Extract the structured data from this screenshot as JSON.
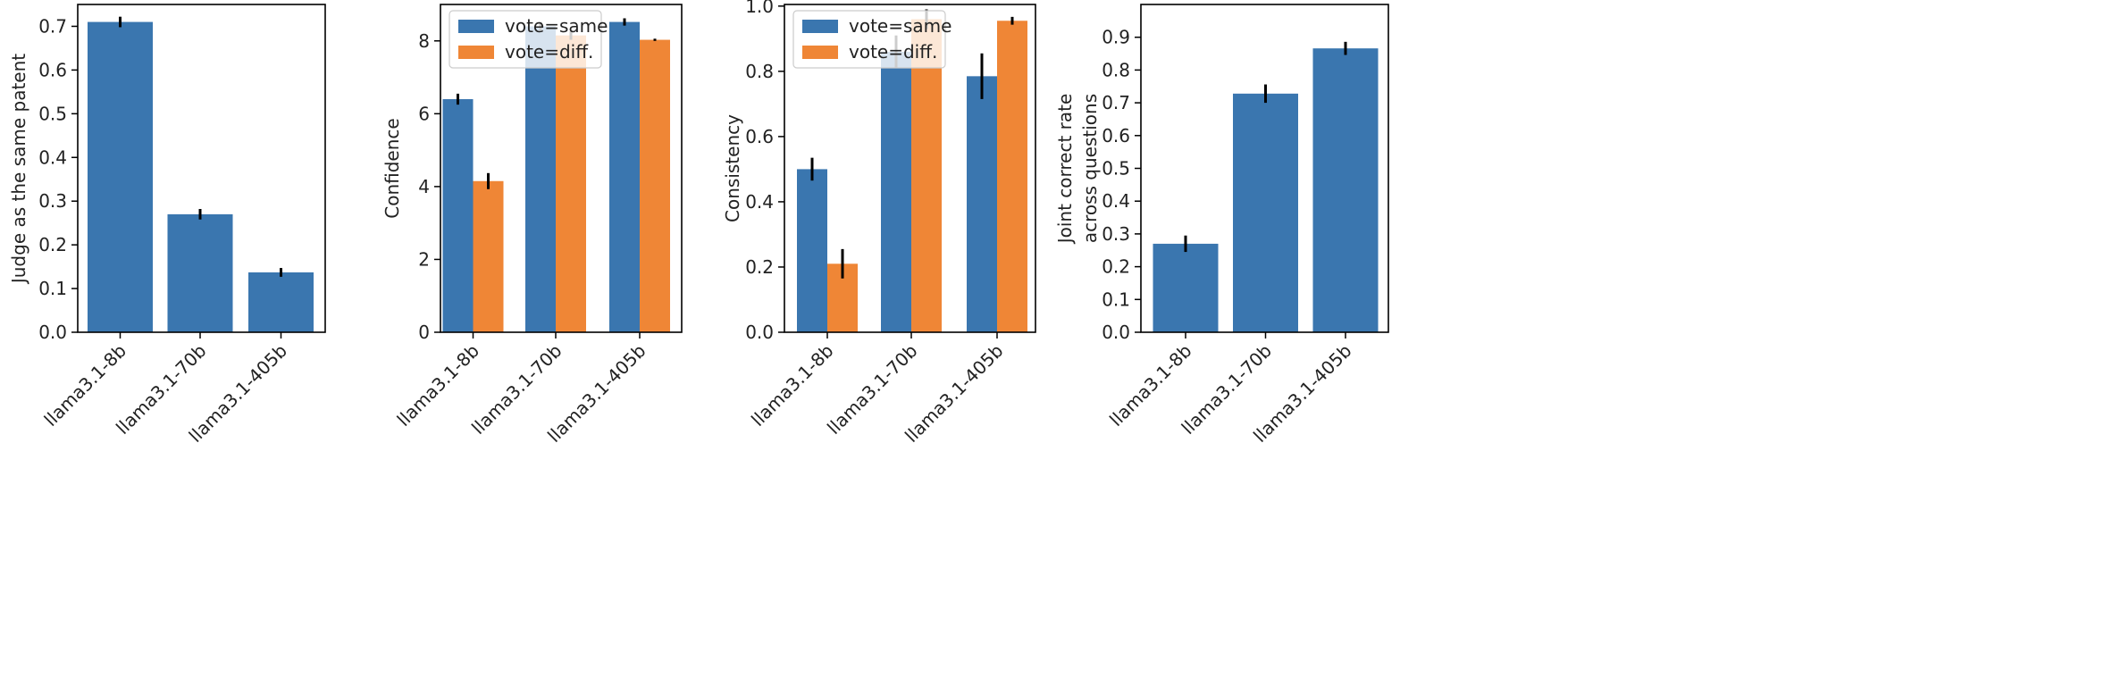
{
  "colors": {
    "blue": "#3a76af",
    "orange": "#ef8636",
    "axis": "#000000",
    "text": "#222222",
    "err": "#000000"
  },
  "chart_data": [
    {
      "type": "bar",
      "ylabel_lines": [
        "Judge as the same patent"
      ],
      "categories": [
        "llama3.1-8b",
        "llama3.1-70b",
        "llama3.1-405b"
      ],
      "ylim": [
        0,
        0.75
      ],
      "yticks": [
        0.0,
        0.1,
        0.2,
        0.3,
        0.4,
        0.5,
        0.6,
        0.7
      ],
      "ytick_labels": [
        "0.0",
        "0.1",
        "0.2",
        "0.3",
        "0.4",
        "0.5",
        "0.6",
        "0.7"
      ],
      "series": [
        {
          "name": "",
          "color": "blue",
          "values": [
            0.71,
            0.27,
            0.137
          ],
          "errors": [
            0.012,
            0.012,
            0.01
          ]
        }
      ]
    },
    {
      "type": "bar",
      "ylabel_lines": [
        "Confidence"
      ],
      "categories": [
        "llama3.1-8b",
        "llama3.1-70b",
        "llama3.1-405b"
      ],
      "ylim": [
        0,
        9.0
      ],
      "yticks": [
        0,
        2,
        4,
        6,
        8
      ],
      "ytick_labels": [
        "0",
        "2",
        "4",
        "6",
        "8"
      ],
      "legend": true,
      "series": [
        {
          "name": "vote=same",
          "color": "blue",
          "values": [
            6.4,
            8.4,
            8.52
          ],
          "errors": [
            0.15,
            0.12,
            0.1
          ]
        },
        {
          "name": "vote=diff.",
          "color": "orange",
          "values": [
            4.15,
            8.15,
            8.03
          ],
          "errors": [
            0.22,
            0.12,
            0.03
          ]
        }
      ]
    },
    {
      "type": "bar",
      "ylabel_lines": [
        "Consistency"
      ],
      "categories": [
        "llama3.1-8b",
        "llama3.1-70b",
        "llama3.1-405b"
      ],
      "ylim": [
        0,
        1.005
      ],
      "yticks": [
        0.0,
        0.2,
        0.4,
        0.6,
        0.8,
        1.0
      ],
      "ytick_labels": [
        "0.0",
        "0.2",
        "0.4",
        "0.6",
        "0.8",
        "1.0"
      ],
      "legend": true,
      "series": [
        {
          "name": "vote=same",
          "color": "blue",
          "values": [
            0.5,
            0.86,
            0.785
          ],
          "errors": [
            0.035,
            0.05,
            0.07
          ]
        },
        {
          "name": "vote=diff.",
          "color": "orange",
          "values": [
            0.21,
            0.96,
            0.955
          ],
          "errors": [
            0.045,
            0.03,
            0.012
          ]
        }
      ]
    },
    {
      "type": "bar",
      "ylabel_lines": [
        "Joint correct rate",
        "across questions"
      ],
      "categories": [
        "llama3.1-8b",
        "llama3.1-70b",
        "llama3.1-405b"
      ],
      "ylim": [
        0,
        1.0
      ],
      "yticks": [
        0.0,
        0.1,
        0.2,
        0.3,
        0.4,
        0.5,
        0.6,
        0.7,
        0.8,
        0.9
      ],
      "ytick_labels": [
        "0.0",
        "0.1",
        "0.2",
        "0.3",
        "0.4",
        "0.5",
        "0.6",
        "0.7",
        "0.8",
        "0.9"
      ],
      "series": [
        {
          "name": "",
          "color": "blue",
          "values": [
            0.27,
            0.728,
            0.866
          ],
          "errors": [
            0.025,
            0.028,
            0.02
          ]
        }
      ]
    }
  ]
}
